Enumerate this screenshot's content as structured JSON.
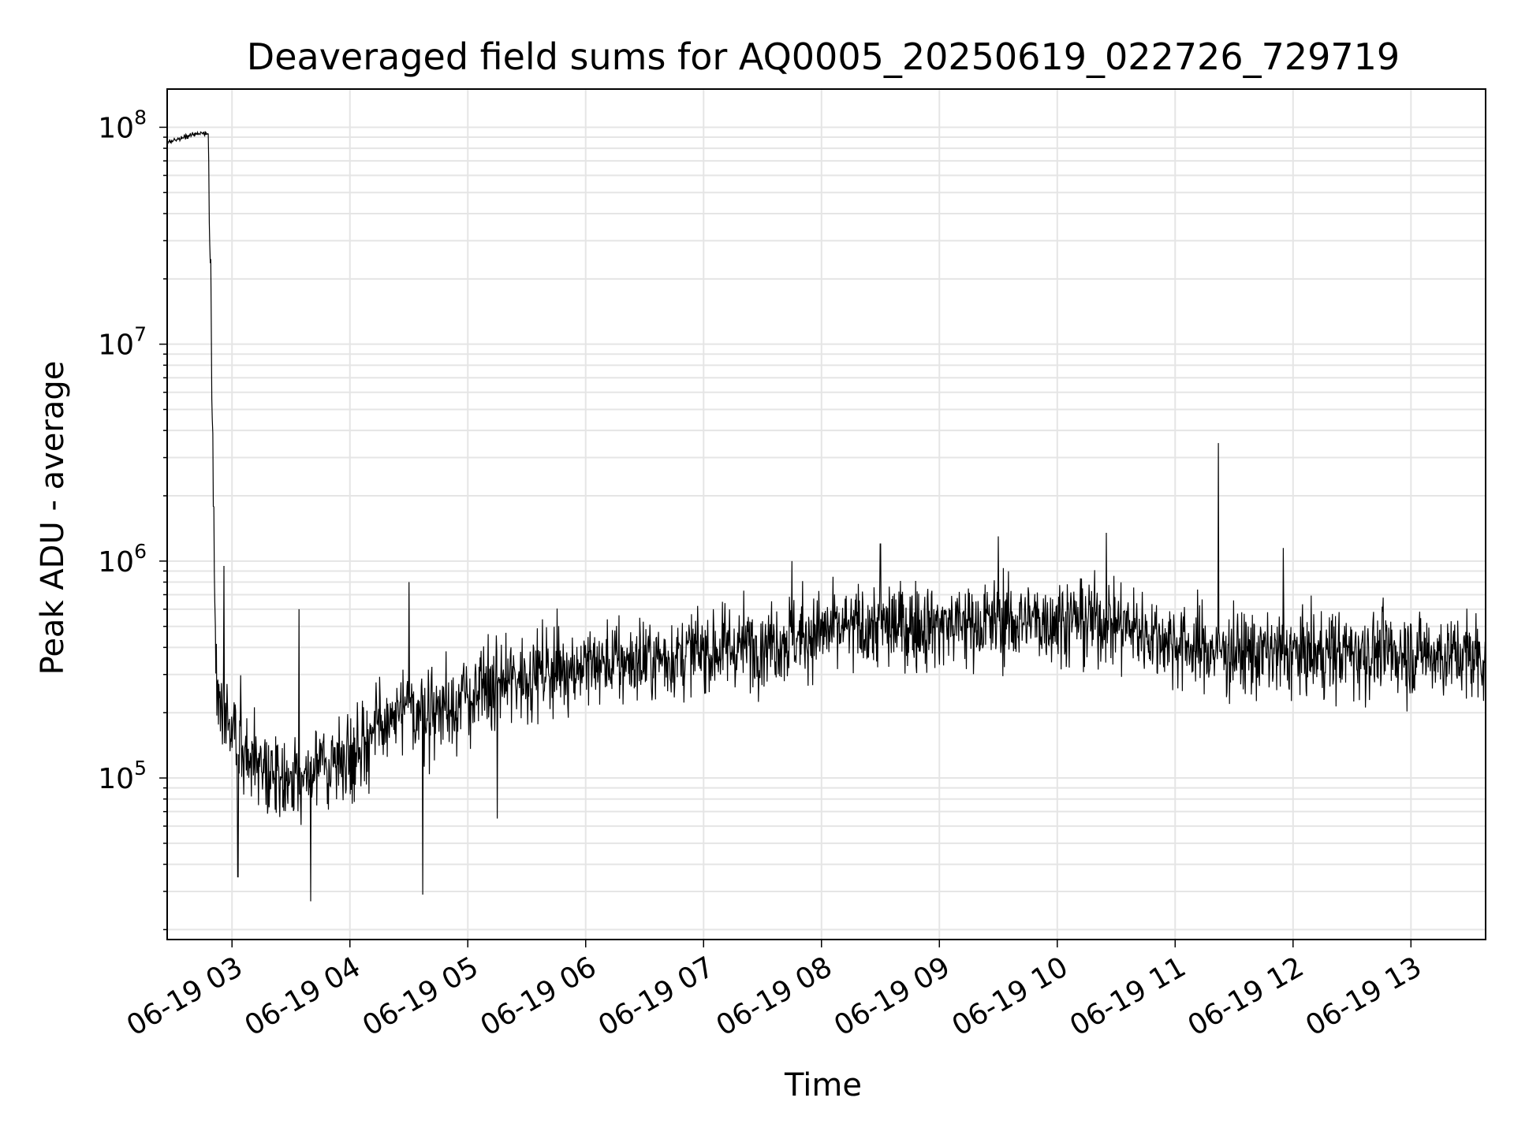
{
  "chart_data": {
    "type": "line",
    "title": "Deaveraged field sums for AQ0005_20250619_022726_729719",
    "xlabel": "Time",
    "ylabel": "Peak ADU - average",
    "yscale": "log",
    "xlim": [
      "06-19 02:27",
      "06-19 13:38"
    ],
    "ylim": [
      18000,
      150000000
    ],
    "grid": true,
    "x_ticks": [
      "06-19 03",
      "06-19 04",
      "06-19 05",
      "06-19 06",
      "06-19 07",
      "06-19 08",
      "06-19 09",
      "06-19 10",
      "06-19 11",
      "06-19 12",
      "06-19 13"
    ],
    "y_ticks": [
      {
        "value": 100000,
        "base": "10",
        "exp": "5"
      },
      {
        "value": 1000000,
        "base": "10",
        "exp": "6"
      },
      {
        "value": 10000000,
        "base": "10",
        "exp": "7"
      },
      {
        "value": 100000000,
        "base": "10",
        "exp": "8"
      }
    ],
    "line_color": "#000000",
    "grid_color": "#e5e5e5",
    "series": [
      {
        "x": [
          "06-19 02:27",
          "06-19 02:35",
          "06-19 02:45",
          "06-19 02:48",
          "06-19 02:52",
          "06-19 03:00",
          "06-19 03:15",
          "06-19 03:30",
          "06-19 03:45",
          "06-19 04:00",
          "06-19 04:15",
          "06-19 04:30",
          "06-19 04:45",
          "06-19 05:00",
          "06-19 05:15",
          "06-19 05:30",
          "06-19 05:45",
          "06-19 06:00",
          "06-19 06:30",
          "06-19 07:00",
          "06-19 07:30",
          "06-19 08:00",
          "06-19 08:30",
          "06-19 09:00",
          "06-19 09:30",
          "06-19 10:00",
          "06-19 10:30",
          "06-19 10:50",
          "06-19 11:10",
          "06-19 11:30",
          "06-19 12:00",
          "06-19 12:30",
          "06-19 13:00",
          "06-19 13:38"
        ],
        "values": [
          85000000,
          90000000,
          95000000,
          92000000,
          250000,
          170000,
          110000,
          95000,
          110000,
          130000,
          170000,
          200000,
          210000,
          230000,
          270000,
          300000,
          320000,
          330000,
          350000,
          380000,
          420000,
          470000,
          500000,
          510000,
          520000,
          540000,
          520000,
          450000,
          400000,
          380000,
          370000,
          380000,
          380000,
          360000
        ],
        "spikes": [
          {
            "x": "06-19 02:56",
            "value": 950000
          },
          {
            "x": "06-19 03:03",
            "value": 35000
          },
          {
            "x": "06-19 03:34",
            "value": 600000
          },
          {
            "x": "06-19 03:40",
            "value": 27000
          },
          {
            "x": "06-19 04:30",
            "value": 800000
          },
          {
            "x": "06-19 04:37",
            "value": 29000
          },
          {
            "x": "06-19 05:15",
            "value": 65000
          },
          {
            "x": "06-19 07:45",
            "value": 1000000
          },
          {
            "x": "06-19 08:30",
            "value": 1200000
          },
          {
            "x": "06-19 09:30",
            "value": 1300000
          },
          {
            "x": "06-19 10:25",
            "value": 1350000
          },
          {
            "x": "06-19 11:22",
            "value": 3500000
          },
          {
            "x": "06-19 11:55",
            "value": 1150000
          }
        ]
      }
    ]
  }
}
